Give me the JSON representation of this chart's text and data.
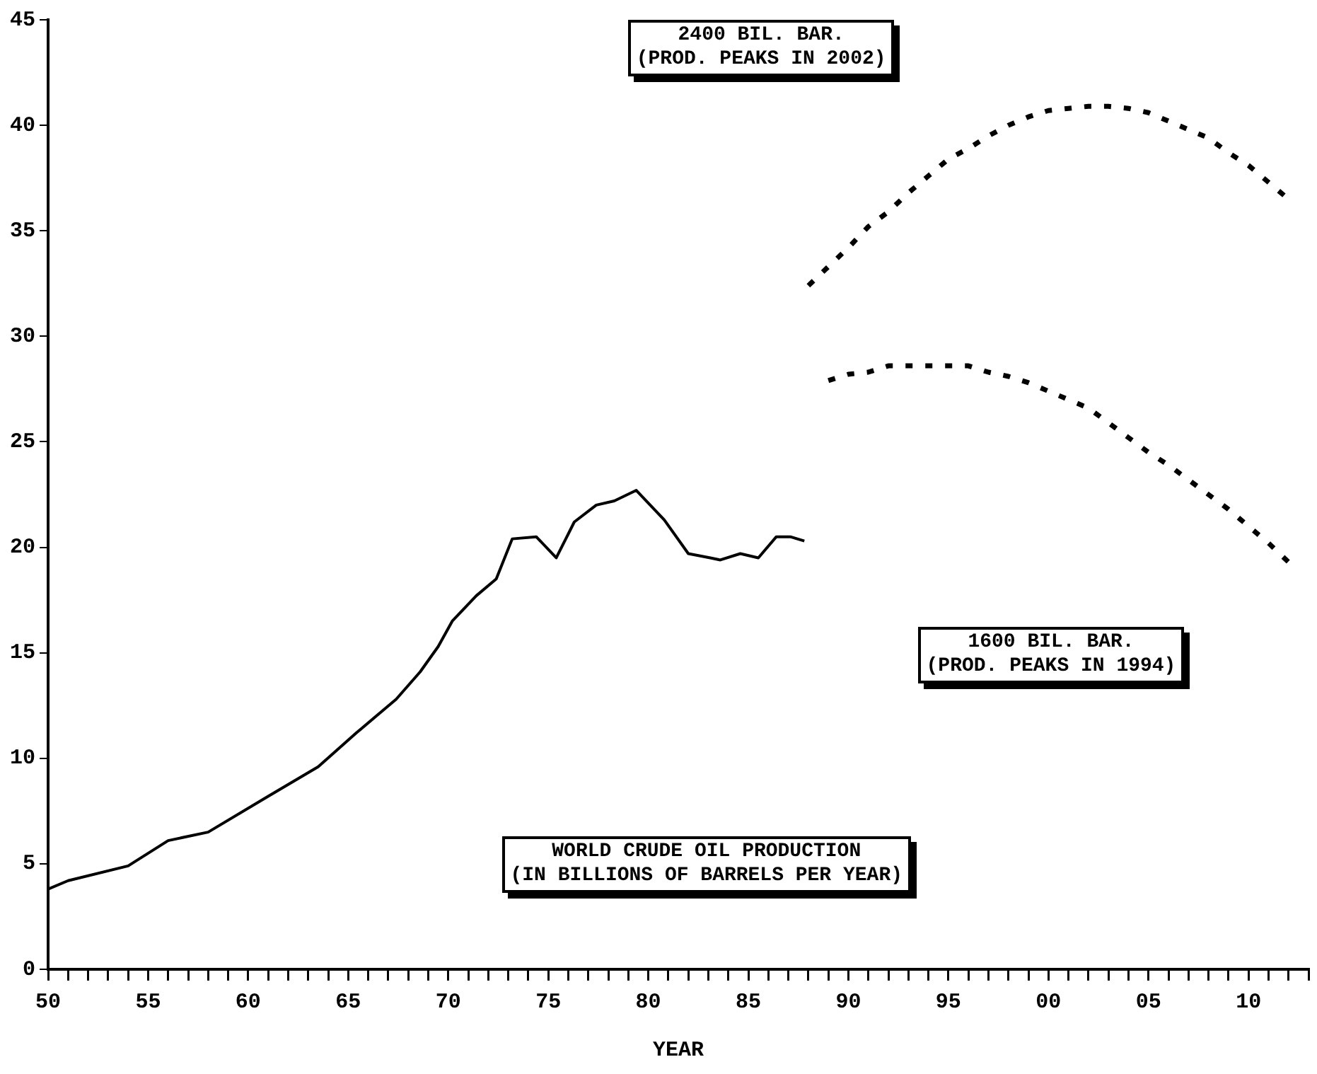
{
  "chart_data": {
    "type": "line",
    "title": "WORLD CRUDE OIL PRODUCTION\n(IN BILLIONS OF BARRELS PER YEAR)",
    "xlabel": "YEAR",
    "xlim": [
      1950,
      2013
    ],
    "ylim": [
      0,
      45
    ],
    "yticks": [
      0,
      5,
      10,
      15,
      20,
      25,
      30,
      35,
      40,
      45
    ],
    "xticks": [
      {
        "value": 1950,
        "label": "50"
      },
      {
        "value": 1951,
        "label": null
      },
      {
        "value": 1952,
        "label": null
      },
      {
        "value": 1953,
        "label": null
      },
      {
        "value": 1954,
        "label": null
      },
      {
        "value": 1955,
        "label": "55"
      },
      {
        "value": 1956,
        "label": null
      },
      {
        "value": 1957,
        "label": null
      },
      {
        "value": 1958,
        "label": null
      },
      {
        "value": 1959,
        "label": null
      },
      {
        "value": 1960,
        "label": "60"
      },
      {
        "value": 1961,
        "label": null
      },
      {
        "value": 1962,
        "label": null
      },
      {
        "value": 1963,
        "label": null
      },
      {
        "value": 1964,
        "label": null
      },
      {
        "value": 1965,
        "label": "65"
      },
      {
        "value": 1966,
        "label": null
      },
      {
        "value": 1967,
        "label": null
      },
      {
        "value": 1968,
        "label": null
      },
      {
        "value": 1969,
        "label": null
      },
      {
        "value": 1970,
        "label": "70"
      },
      {
        "value": 1971,
        "label": null
      },
      {
        "value": 1972,
        "label": null
      },
      {
        "value": 1973,
        "label": null
      },
      {
        "value": 1974,
        "label": null
      },
      {
        "value": 1975,
        "label": "75"
      },
      {
        "value": 1976,
        "label": null
      },
      {
        "value": 1977,
        "label": null
      },
      {
        "value": 1978,
        "label": null
      },
      {
        "value": 1979,
        "label": null
      },
      {
        "value": 1980,
        "label": "80"
      },
      {
        "value": 1981,
        "label": null
      },
      {
        "value": 1982,
        "label": null
      },
      {
        "value": 1983,
        "label": null
      },
      {
        "value": 1984,
        "label": null
      },
      {
        "value": 1985,
        "label": "85"
      },
      {
        "value": 1986,
        "label": null
      },
      {
        "value": 1987,
        "label": null
      },
      {
        "value": 1988,
        "label": null
      },
      {
        "value": 1989,
        "label": null
      },
      {
        "value": 1990,
        "label": "90"
      },
      {
        "value": 1991,
        "label": null
      },
      {
        "value": 1992,
        "label": null
      },
      {
        "value": 1993,
        "label": null
      },
      {
        "value": 1994,
        "label": null
      },
      {
        "value": 1995,
        "label": "95"
      },
      {
        "value": 1996,
        "label": null
      },
      {
        "value": 1997,
        "label": null
      },
      {
        "value": 1998,
        "label": null
      },
      {
        "value": 1999,
        "label": null
      },
      {
        "value": 2000,
        "label": "00"
      },
      {
        "value": 2001,
        "label": null
      },
      {
        "value": 2002,
        "label": null
      },
      {
        "value": 2003,
        "label": null
      },
      {
        "value": 2004,
        "label": null
      },
      {
        "value": 2005,
        "label": "05"
      },
      {
        "value": 2006,
        "label": null
      },
      {
        "value": 2007,
        "label": null
      },
      {
        "value": 2008,
        "label": null
      },
      {
        "value": 2009,
        "label": null
      },
      {
        "value": 2010,
        "label": "10"
      },
      {
        "value": 2011,
        "label": null
      },
      {
        "value": 2012,
        "label": null
      },
      {
        "value": 2013,
        "label": null
      }
    ],
    "grid": false,
    "legend": false,
    "marker": "none",
    "series": [
      {
        "color": "#000000",
        "line_style": "solid",
        "x": [
          1950,
          1951,
          1954,
          1956,
          1958,
          1961,
          1963.5,
          1965.4,
          1967.4,
          1968.6,
          1969.5,
          1970.2,
          1971.4,
          1972.4,
          1973.2,
          1974.4,
          1975.4,
          1976.3,
          1977.4,
          1978.3,
          1979.4,
          1980.8,
          1982,
          1983.1,
          1983.6,
          1984.6,
          1985.5,
          1986.4,
          1987.1,
          1987.8
        ],
        "values": [
          3.8,
          4.2,
          4.9,
          6.1,
          6.5,
          8.2,
          9.6,
          11.2,
          12.8,
          14.1,
          15.3,
          16.5,
          17.7,
          18.5,
          20.4,
          20.5,
          19.5,
          21.2,
          22,
          22.2,
          22.7,
          21.3,
          19.7,
          19.5,
          19.4,
          19.7,
          19.5,
          20.5,
          20.5,
          20.3
        ]
      },
      {
        "name": "2400 BIL. BAR.\n(PROD. PEAKS IN 2002)",
        "color": "#000000",
        "line_style": "dotted",
        "x": [
          1988,
          1989,
          1990,
          1991,
          1992,
          1993,
          1994,
          1995,
          1996,
          1997,
          1998,
          1999,
          2000,
          2001,
          2002,
          2003,
          2004,
          2005,
          2006,
          2007,
          2008,
          2009,
          2010,
          2011,
          2012
        ],
        "values": [
          32.4,
          33.3,
          34.2,
          35.2,
          35.9,
          36.8,
          37.6,
          38.4,
          38.9,
          39.5,
          40,
          40.4,
          40.7,
          40.8,
          40.9,
          40.9,
          40.8,
          40.6,
          40.2,
          39.8,
          39.4,
          38.7,
          38.1,
          37.3,
          36.5
        ]
      },
      {
        "name": "1600 BIL. BAR.\n(PROD. PEAKS IN 1994)",
        "color": "#000000",
        "line_style": "dotted",
        "x": [
          1989,
          1990,
          1991,
          1992,
          1993,
          1994,
          1995,
          1996,
          1997,
          1998,
          1999,
          2000,
          2001,
          2002,
          2003,
          2004,
          2005,
          2006,
          2007,
          2008,
          2009,
          2010,
          2011,
          2012
        ],
        "values": [
          27.9,
          28.2,
          28.3,
          28.6,
          28.6,
          28.6,
          28.6,
          28.6,
          28.3,
          28.1,
          27.8,
          27.4,
          27,
          26.6,
          25.9,
          25.2,
          24.5,
          23.9,
          23.2,
          22.5,
          21.8,
          21,
          20.2,
          19.3
        ]
      }
    ]
  }
}
